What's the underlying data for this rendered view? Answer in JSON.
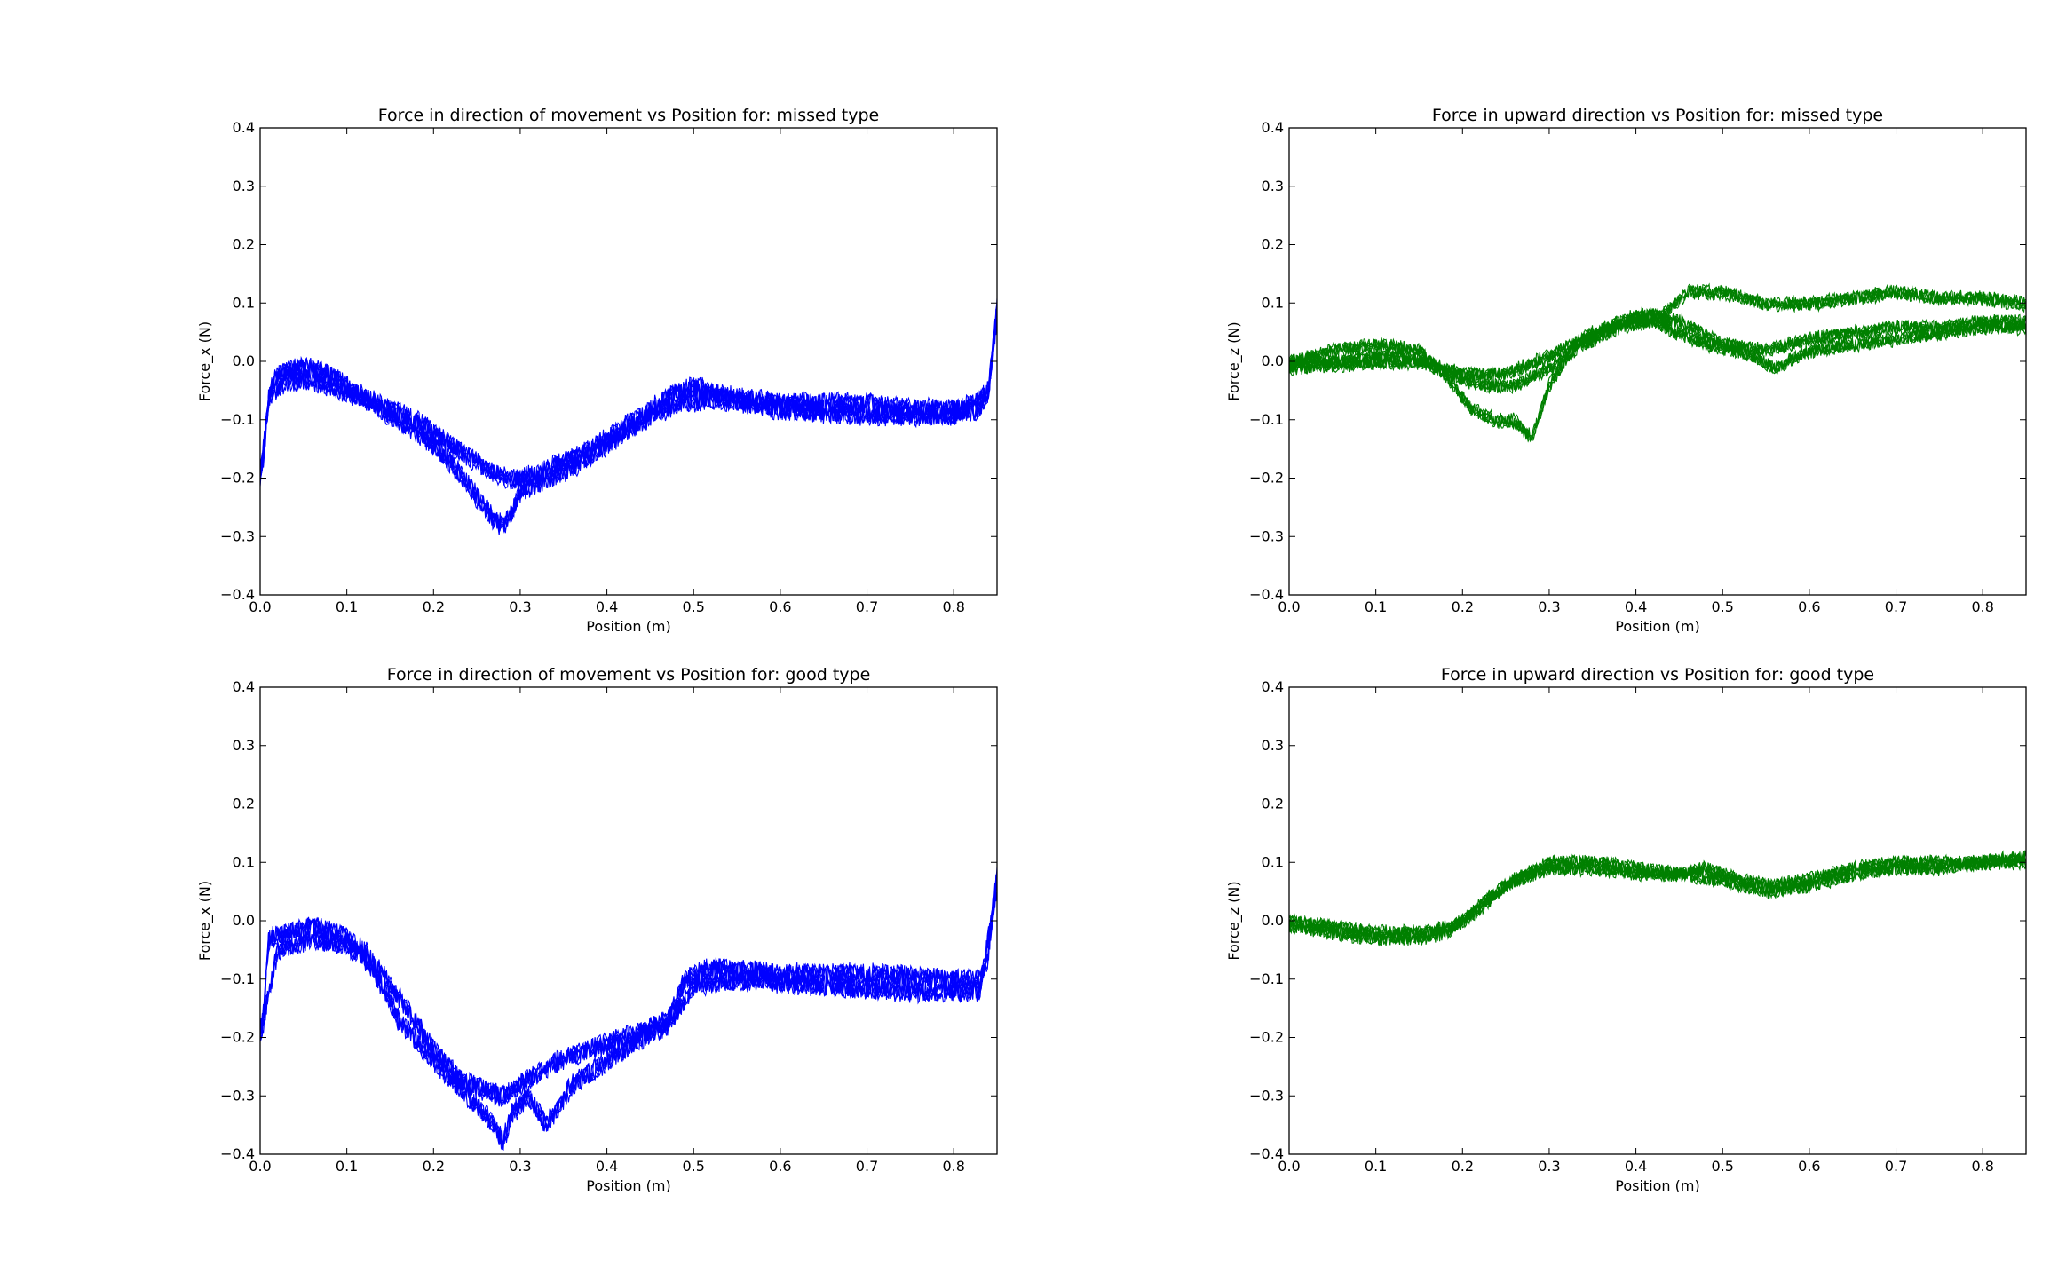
{
  "chart_data": [
    {
      "type": "line",
      "title": "Force in direction of movement vs Position for: missed type",
      "xlabel": "Position (m)",
      "ylabel": "Force_x (N)",
      "xlim": [
        0,
        0.85
      ],
      "ylim": [
        -0.4,
        0.4
      ],
      "xticks": [
        "0.0",
        "0.1",
        "0.2",
        "0.3",
        "0.4",
        "0.5",
        "0.6",
        "0.7",
        "0.8"
      ],
      "yticks": [
        "0.4",
        "0.3",
        "0.2",
        "0.1",
        "0.0",
        "−0.1",
        "−0.2",
        "−0.3",
        "−0.4"
      ],
      "color": "#0000ff",
      "grid": false,
      "series": [
        {
          "x": [
            0,
            0.005,
            0.01,
            0.02,
            0.04,
            0.06,
            0.08,
            0.1,
            0.12,
            0.15,
            0.18,
            0.2,
            0.22,
            0.25,
            0.27,
            0.29,
            0.3,
            0.32,
            0.35,
            0.38,
            0.41,
            0.44,
            0.47,
            0.5,
            0.52,
            0.55,
            0.6,
            0.65,
            0.7,
            0.75,
            0.8,
            0.83,
            0.84,
            0.845,
            0.85
          ],
          "y": [
            -0.19,
            -0.15,
            -0.05,
            -0.02,
            -0.01,
            -0.01,
            -0.02,
            -0.04,
            -0.06,
            -0.08,
            -0.1,
            -0.12,
            -0.14,
            -0.17,
            -0.19,
            -0.2,
            -0.2,
            -0.19,
            -0.17,
            -0.15,
            -0.12,
            -0.09,
            -0.06,
            -0.04,
            -0.05,
            -0.06,
            -0.07,
            -0.07,
            -0.07,
            -0.08,
            -0.08,
            -0.08,
            -0.05,
            0.02,
            0.1
          ]
        },
        {
          "x": [
            0,
            0.01,
            0.03,
            0.06,
            0.1,
            0.13,
            0.16,
            0.19,
            0.22,
            0.24,
            0.26,
            0.27,
            0.28,
            0.29,
            0.3,
            0.33,
            0.36,
            0.4,
            0.44,
            0.48,
            0.52,
            0.6,
            0.7,
            0.8,
            0.84,
            0.85
          ],
          "y": [
            -0.2,
            -0.06,
            -0.03,
            -0.03,
            -0.05,
            -0.07,
            -0.1,
            -0.13,
            -0.17,
            -0.21,
            -0.25,
            -0.27,
            -0.28,
            -0.26,
            -0.22,
            -0.2,
            -0.18,
            -0.14,
            -0.1,
            -0.07,
            -0.06,
            -0.08,
            -0.09,
            -0.09,
            -0.05,
            0.08
          ]
        }
      ]
    },
    {
      "type": "line",
      "title": "Force in upward direction vs Position for: missed type",
      "xlabel": "Position (m)",
      "ylabel": "Force_z (N)",
      "xlim": [
        0,
        0.85
      ],
      "ylim": [
        -0.4,
        0.4
      ],
      "xticks": [
        "0.0",
        "0.1",
        "0.2",
        "0.3",
        "0.4",
        "0.5",
        "0.6",
        "0.7",
        "0.8"
      ],
      "yticks": [
        "0.4",
        "0.3",
        "0.2",
        "0.1",
        "0.0",
        "−0.1",
        "−0.2",
        "−0.3",
        "−0.4"
      ],
      "color": "#008000",
      "grid": false,
      "series": [
        {
          "x": [
            0,
            0.05,
            0.1,
            0.14,
            0.17,
            0.2,
            0.23,
            0.26,
            0.3,
            0.34,
            0.38,
            0.42,
            0.45,
            0.48,
            0.52,
            0.56,
            0.6,
            0.65,
            0.7,
            0.75,
            0.8,
            0.85
          ],
          "y": [
            0.0,
            0.0,
            0.01,
            0.01,
            -0.01,
            -0.03,
            -0.04,
            -0.04,
            -0.01,
            0.03,
            0.06,
            0.07,
            0.05,
            0.03,
            0.02,
            -0.01,
            0.02,
            0.03,
            0.04,
            0.05,
            0.06,
            0.06
          ]
        },
        {
          "x": [
            0,
            0.05,
            0.1,
            0.15,
            0.18,
            0.21,
            0.24,
            0.26,
            0.28,
            0.3,
            0.33,
            0.37,
            0.41,
            0.45,
            0.5,
            0.55,
            0.6,
            0.65,
            0.7,
            0.75,
            0.8,
            0.85
          ],
          "y": [
            0.0,
            0.02,
            0.03,
            0.02,
            -0.02,
            -0.08,
            -0.1,
            -0.1,
            -0.13,
            -0.04,
            0.03,
            0.06,
            0.08,
            0.07,
            0.03,
            0.02,
            0.04,
            0.05,
            0.06,
            0.06,
            0.07,
            0.07
          ]
        },
        {
          "x": [
            0,
            0.1,
            0.15,
            0.2,
            0.25,
            0.3,
            0.35,
            0.4,
            0.43,
            0.46,
            0.5,
            0.55,
            0.6,
            0.65,
            0.7,
            0.75,
            0.8,
            0.85
          ],
          "y": [
            -0.01,
            0.0,
            0.0,
            -0.02,
            -0.02,
            0.01,
            0.05,
            0.08,
            0.08,
            0.12,
            0.12,
            0.1,
            0.1,
            0.11,
            0.12,
            0.11,
            0.11,
            0.1
          ]
        }
      ]
    },
    {
      "type": "line",
      "title": "Force in direction of movement vs Position for: good type",
      "xlabel": "Position (m)",
      "ylabel": "Force_x (N)",
      "xlim": [
        0,
        0.85
      ],
      "ylim": [
        -0.4,
        0.4
      ],
      "xticks": [
        "0.0",
        "0.1",
        "0.2",
        "0.3",
        "0.4",
        "0.5",
        "0.6",
        "0.7",
        "0.8"
      ],
      "yticks": [
        "0.4",
        "0.3",
        "0.2",
        "0.1",
        "0.0",
        "−0.1",
        "−0.2",
        "−0.3",
        "−0.4"
      ],
      "color": "#0000ff",
      "grid": false,
      "series": [
        {
          "x": [
            0,
            0.005,
            0.01,
            0.03,
            0.06,
            0.09,
            0.12,
            0.14,
            0.17,
            0.2,
            0.23,
            0.26,
            0.28,
            0.3,
            0.33,
            0.36,
            0.4,
            0.44,
            0.47,
            0.49,
            0.52,
            0.6,
            0.7,
            0.8,
            0.83,
            0.84,
            0.845,
            0.85
          ],
          "y": [
            -0.19,
            -0.14,
            -0.03,
            -0.02,
            -0.01,
            -0.02,
            -0.05,
            -0.09,
            -0.15,
            -0.22,
            -0.27,
            -0.29,
            -0.3,
            -0.28,
            -0.25,
            -0.23,
            -0.21,
            -0.19,
            -0.17,
            -0.1,
            -0.08,
            -0.09,
            -0.09,
            -0.1,
            -0.1,
            -0.06,
            0.02,
            0.08
          ]
        },
        {
          "x": [
            0,
            0.02,
            0.06,
            0.1,
            0.13,
            0.16,
            0.2,
            0.24,
            0.27,
            0.28,
            0.29,
            0.31,
            0.33,
            0.36,
            0.4,
            0.44,
            0.47,
            0.5,
            0.55,
            0.65,
            0.75,
            0.83,
            0.85
          ],
          "y": [
            -0.2,
            -0.05,
            -0.03,
            -0.04,
            -0.08,
            -0.17,
            -0.24,
            -0.3,
            -0.35,
            -0.38,
            -0.33,
            -0.3,
            -0.35,
            -0.28,
            -0.24,
            -0.2,
            -0.18,
            -0.11,
            -0.1,
            -0.11,
            -0.12,
            -0.12,
            0.06
          ]
        }
      ]
    },
    {
      "type": "line",
      "title": "Force in upward direction vs Position for: good type",
      "xlabel": "Position (m)",
      "ylabel": "Force_z (N)",
      "xlim": [
        0,
        0.85
      ],
      "ylim": [
        -0.4,
        0.4
      ],
      "xticks": [
        "0.0",
        "0.1",
        "0.2",
        "0.3",
        "0.4",
        "0.5",
        "0.6",
        "0.7",
        "0.8"
      ],
      "yticks": [
        "0.4",
        "0.3",
        "0.2",
        "0.1",
        "0.0",
        "−0.1",
        "−0.2",
        "−0.3",
        "−0.4"
      ],
      "color": "#008000",
      "grid": false,
      "series": [
        {
          "x": [
            0,
            0.05,
            0.1,
            0.15,
            0.18,
            0.2,
            0.23,
            0.26,
            0.3,
            0.35,
            0.4,
            0.45,
            0.5,
            0.55,
            0.6,
            0.65,
            0.7,
            0.75,
            0.8,
            0.85
          ],
          "y": [
            -0.01,
            -0.02,
            -0.03,
            -0.03,
            -0.02,
            0.0,
            0.04,
            0.07,
            0.09,
            0.09,
            0.08,
            0.08,
            0.07,
            0.05,
            0.06,
            0.08,
            0.09,
            0.09,
            0.1,
            0.1
          ]
        },
        {
          "x": [
            0,
            0.05,
            0.1,
            0.15,
            0.19,
            0.22,
            0.25,
            0.3,
            0.35,
            0.4,
            0.45,
            0.48,
            0.52,
            0.56,
            0.6,
            0.65,
            0.7,
            0.8,
            0.85
          ],
          "y": [
            0.0,
            -0.01,
            -0.02,
            -0.02,
            -0.01,
            0.02,
            0.06,
            0.1,
            0.1,
            0.09,
            0.08,
            0.09,
            0.07,
            0.06,
            0.07,
            0.09,
            0.1,
            0.1,
            0.11
          ]
        }
      ]
    }
  ]
}
